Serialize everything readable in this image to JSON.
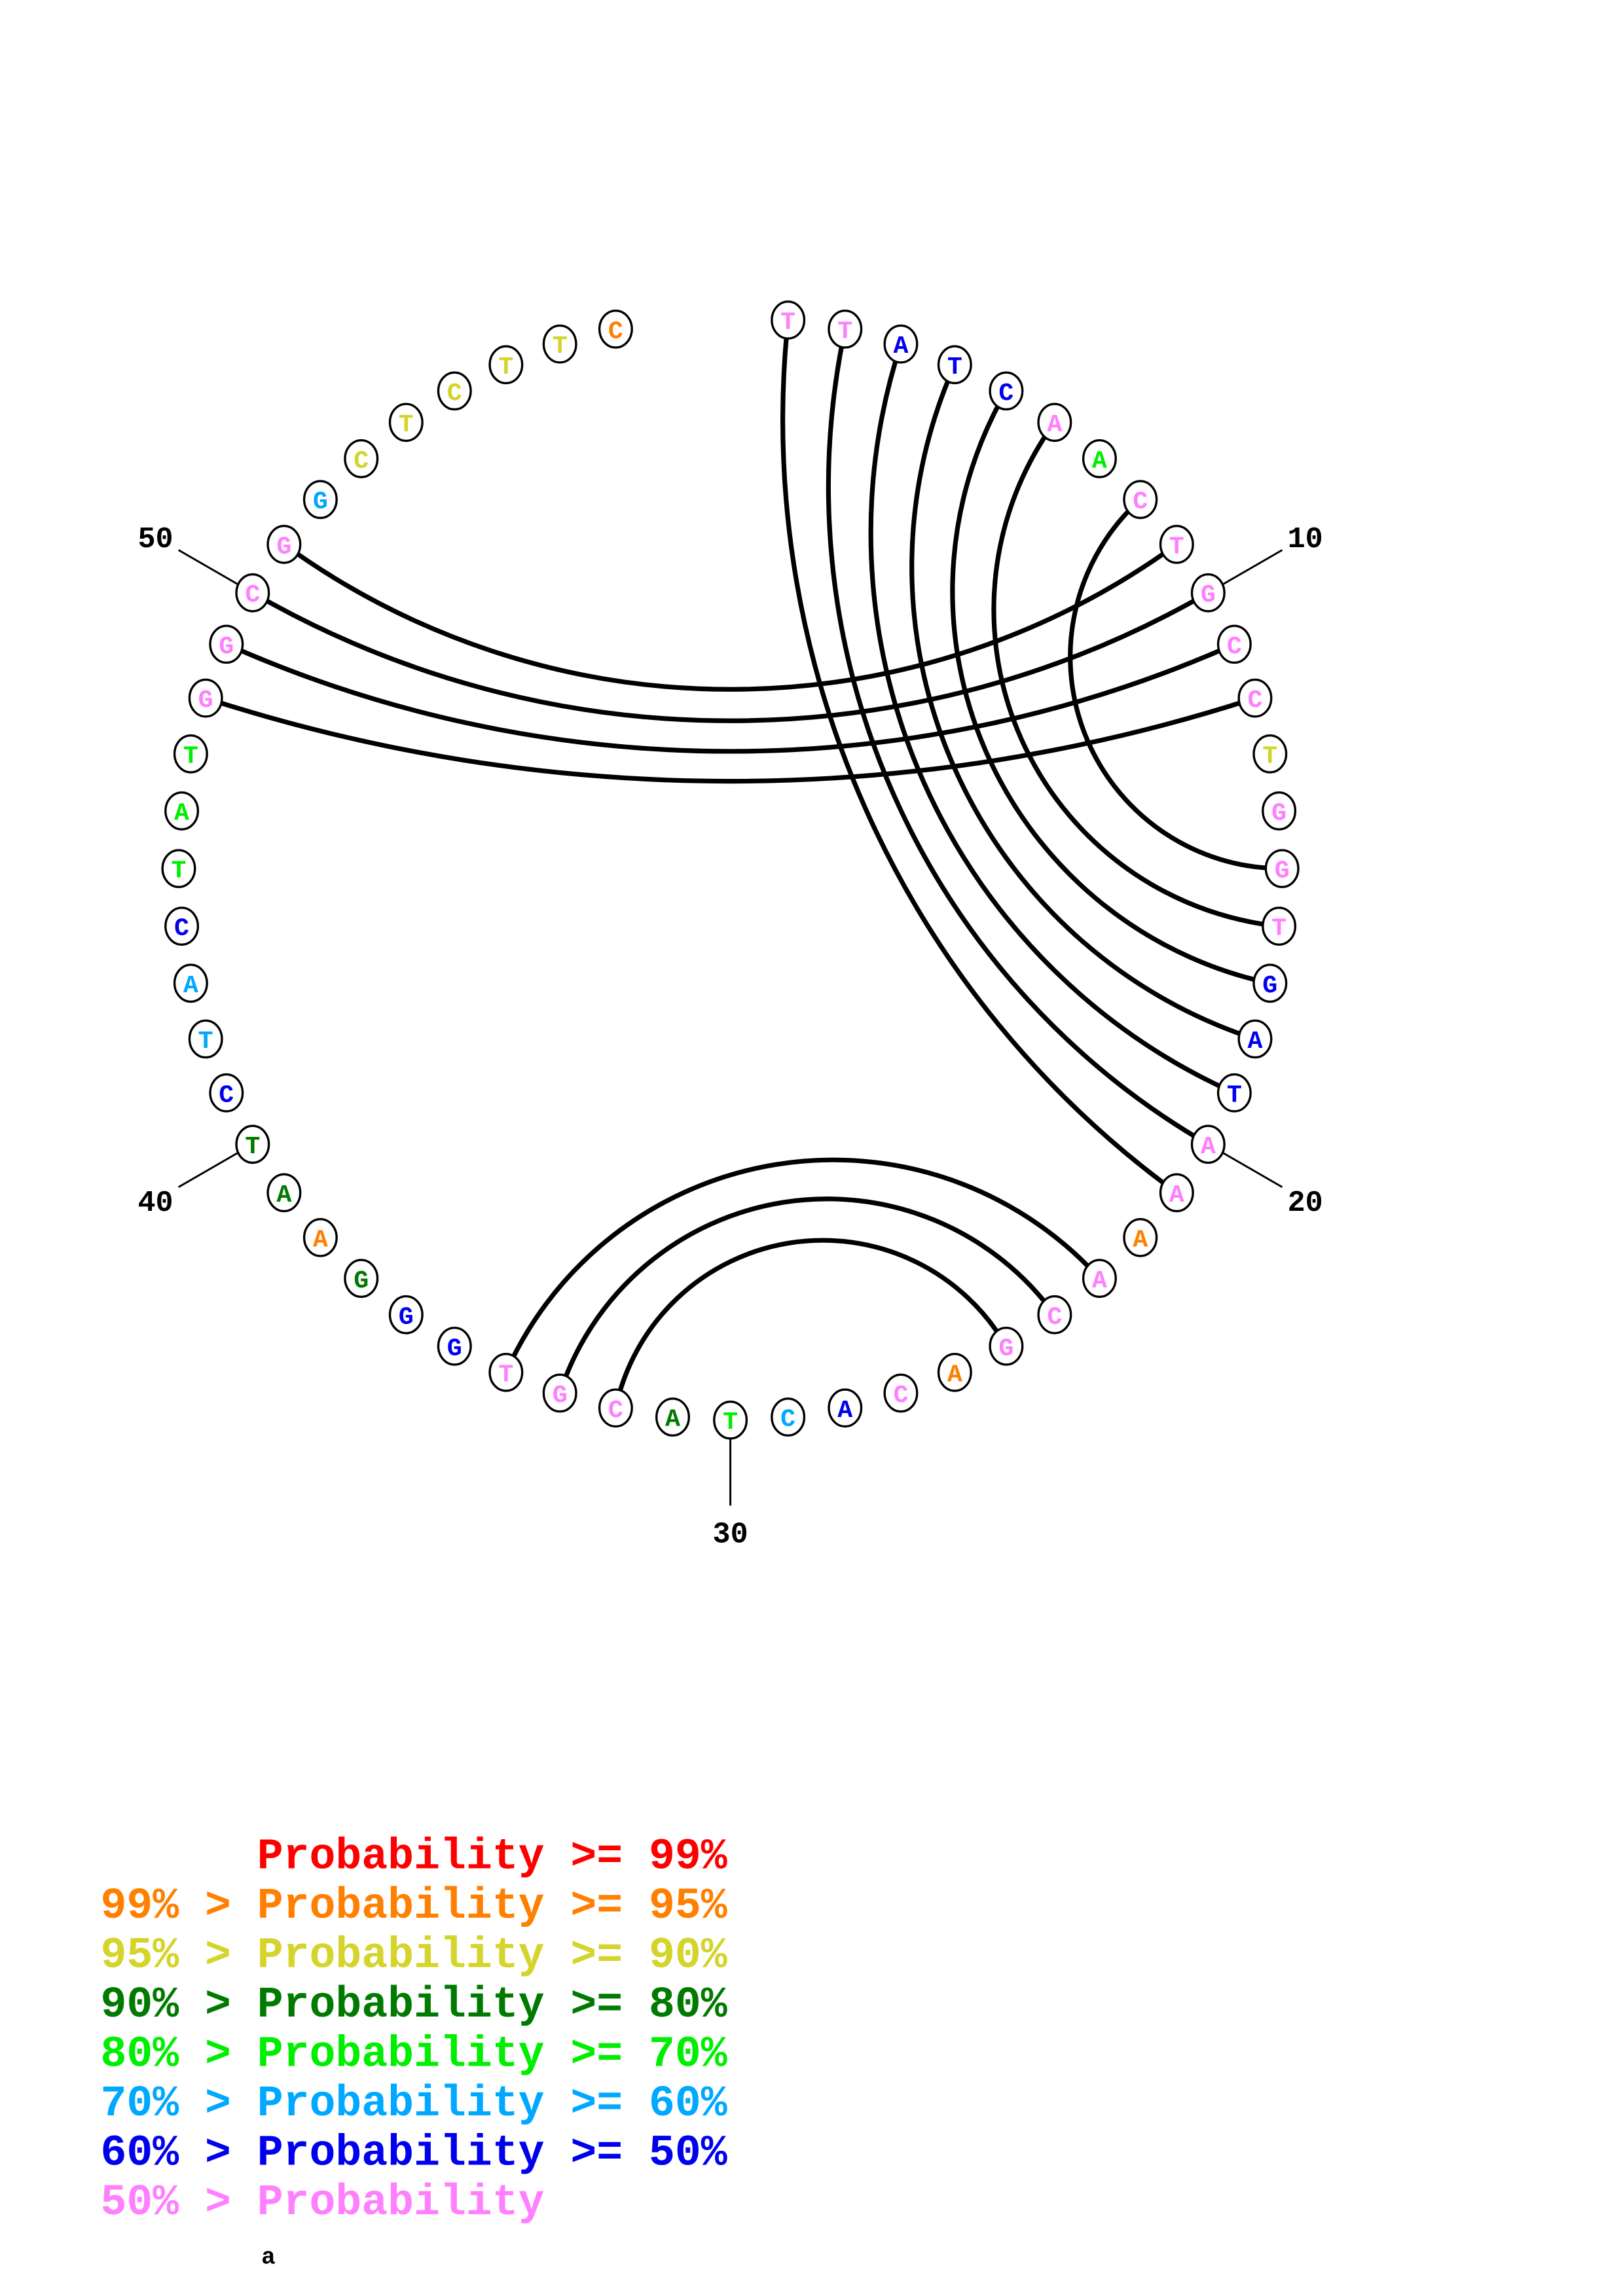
{
  "colors": {
    "p99": "#ff0000",
    "p95": "#ff8000",
    "p90": "#d4d42a",
    "p80": "#007a00",
    "p70": "#00ee00",
    "p60": "#00a8ff",
    "p50": "#0000ee",
    "plt50": "#ff80ff"
  },
  "sequence": [
    {
      "n": "T",
      "c": "plt50"
    },
    {
      "n": "T",
      "c": "plt50"
    },
    {
      "n": "A",
      "c": "p50"
    },
    {
      "n": "T",
      "c": "p50"
    },
    {
      "n": "C",
      "c": "p50"
    },
    {
      "n": "A",
      "c": "plt50"
    },
    {
      "n": "A",
      "c": "p70"
    },
    {
      "n": "C",
      "c": "plt50"
    },
    {
      "n": "T",
      "c": "plt50"
    },
    {
      "n": "G",
      "c": "plt50"
    },
    {
      "n": "C",
      "c": "plt50"
    },
    {
      "n": "C",
      "c": "plt50"
    },
    {
      "n": "T",
      "c": "p90"
    },
    {
      "n": "G",
      "c": "plt50"
    },
    {
      "n": "G",
      "c": "plt50"
    },
    {
      "n": "T",
      "c": "plt50"
    },
    {
      "n": "G",
      "c": "p50"
    },
    {
      "n": "A",
      "c": "p50"
    },
    {
      "n": "T",
      "c": "p50"
    },
    {
      "n": "A",
      "c": "plt50"
    },
    {
      "n": "A",
      "c": "plt50"
    },
    {
      "n": "A",
      "c": "p95"
    },
    {
      "n": "A",
      "c": "plt50"
    },
    {
      "n": "C",
      "c": "plt50"
    },
    {
      "n": "G",
      "c": "plt50"
    },
    {
      "n": "A",
      "c": "p95"
    },
    {
      "n": "C",
      "c": "plt50"
    },
    {
      "n": "A",
      "c": "p50"
    },
    {
      "n": "C",
      "c": "p60"
    },
    {
      "n": "T",
      "c": "p70"
    },
    {
      "n": "A",
      "c": "p80"
    },
    {
      "n": "C",
      "c": "plt50"
    },
    {
      "n": "G",
      "c": "plt50"
    },
    {
      "n": "T",
      "c": "plt50"
    },
    {
      "n": "G",
      "c": "p50"
    },
    {
      "n": "G",
      "c": "p50"
    },
    {
      "n": "G",
      "c": "p80"
    },
    {
      "n": "A",
      "c": "p95"
    },
    {
      "n": "A",
      "c": "p80"
    },
    {
      "n": "T",
      "c": "p80"
    },
    {
      "n": "C",
      "c": "p50"
    },
    {
      "n": "T",
      "c": "p60"
    },
    {
      "n": "A",
      "c": "p60"
    },
    {
      "n": "C",
      "c": "p50"
    },
    {
      "n": "T",
      "c": "p70"
    },
    {
      "n": "A",
      "c": "p70"
    },
    {
      "n": "T",
      "c": "p70"
    },
    {
      "n": "G",
      "c": "plt50"
    },
    {
      "n": "G",
      "c": "plt50"
    },
    {
      "n": "C",
      "c": "plt50"
    },
    {
      "n": "G",
      "c": "plt50"
    },
    {
      "n": "G",
      "c": "p60"
    },
    {
      "n": "C",
      "c": "p90"
    },
    {
      "n": "T",
      "c": "p90"
    },
    {
      "n": "C",
      "c": "p90"
    },
    {
      "n": "T",
      "c": "p90"
    },
    {
      "n": "T",
      "c": "p90"
    },
    {
      "n": "C",
      "c": "p95"
    }
  ],
  "pairs": [
    [
      1,
      21
    ],
    [
      2,
      20
    ],
    [
      3,
      19
    ],
    [
      4,
      18
    ],
    [
      5,
      17
    ],
    [
      6,
      16
    ],
    [
      8,
      15
    ],
    [
      9,
      51
    ],
    [
      10,
      50
    ],
    [
      11,
      49
    ],
    [
      12,
      48
    ],
    [
      23,
      34
    ],
    [
      24,
      33
    ],
    [
      25,
      32
    ]
  ],
  "position_labels": [
    "10",
    "20",
    "30",
    "40",
    "50"
  ],
  "legend": {
    "rows": [
      {
        "text": "      Probability >= 99%",
        "c": "p99"
      },
      {
        "text": "99% > Probability >= 95%",
        "c": "p95"
      },
      {
        "text": "95% > Probability >= 90%",
        "c": "p90"
      },
      {
        "text": "90% > Probability >= 80%",
        "c": "p80"
      },
      {
        "text": "80% > Probability >= 70%",
        "c": "p70"
      },
      {
        "text": "70% > Probability >= 60%",
        "c": "p60"
      },
      {
        "text": "60% > Probability >= 50%",
        "c": "p50"
      },
      {
        "text": "50% > Probability",
        "c": "plt50"
      }
    ],
    "footer": "a"
  }
}
